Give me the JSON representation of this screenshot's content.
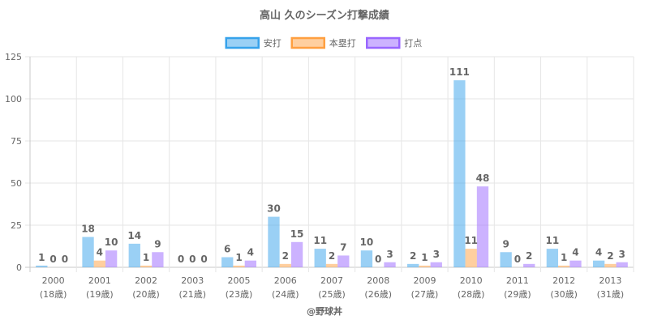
{
  "chart_data": {
    "type": "bar",
    "title": "高山 久のシーズン打撃成績",
    "categories": [
      "2000",
      "2001",
      "2002",
      "2003",
      "2005",
      "2006",
      "2007",
      "2008",
      "2009",
      "2010",
      "2011",
      "2012",
      "2013"
    ],
    "subcategories": [
      "(18歳)",
      "(19歳)",
      "(20歳)",
      "(21歳)",
      "(23歳)",
      "(24歳)",
      "(25歳)",
      "(26歳)",
      "(27歳)",
      "(28歳)",
      "(29歳)",
      "(30歳)",
      "(31歳)"
    ],
    "series": [
      {
        "name": "安打",
        "values": [
          1,
          18,
          14,
          0,
          6,
          30,
          11,
          10,
          2,
          111,
          9,
          11,
          4
        ],
        "color": "#36A2EB"
      },
      {
        "name": "本塁打",
        "values": [
          0,
          4,
          1,
          0,
          1,
          2,
          2,
          0,
          1,
          11,
          0,
          1,
          2
        ],
        "color": "#FF9F40"
      },
      {
        "name": "打点",
        "values": [
          0,
          10,
          9,
          0,
          4,
          15,
          7,
          3,
          3,
          48,
          2,
          4,
          3
        ],
        "color": "#9966FF"
      }
    ],
    "ylim": [
      0,
      125
    ],
    "yticks": [
      0,
      25,
      50,
      75,
      100,
      125
    ],
    "legend": "top",
    "grid": true
  },
  "credit": "@野球丼"
}
